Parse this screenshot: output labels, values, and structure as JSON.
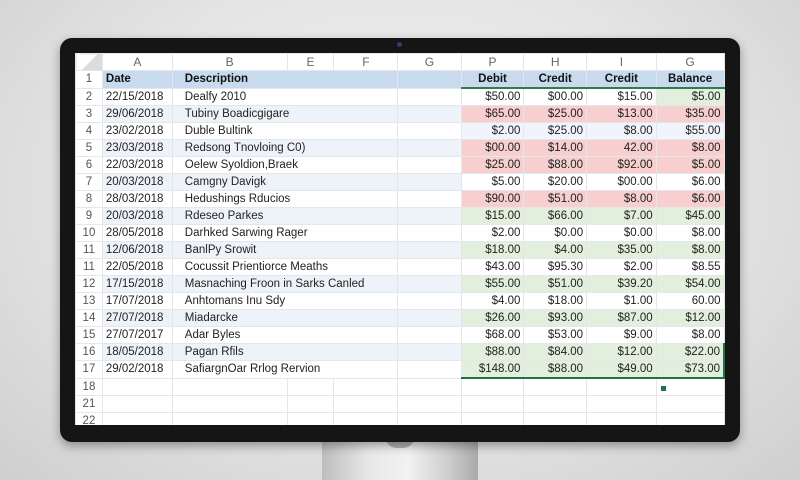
{
  "spreadsheet": {
    "column_headers": [
      "A",
      "B",
      "E",
      "F",
      "G",
      "P",
      "H",
      "I",
      "G"
    ],
    "header_row": {
      "row_number": "1",
      "date": "Date",
      "description": "Description",
      "debit": "Debit",
      "credit1": "Credit",
      "credit2": "Credit",
      "balance": "Balance"
    },
    "rows": [
      {
        "row_number": "2",
        "date": "22/15/2018",
        "description": "Dealfy 2010",
        "debit": "$50.00",
        "credit1": "$00.00",
        "credit2": "$15.00",
        "balance": "$5.00"
      },
      {
        "row_number": "3",
        "date": "29/06/2018",
        "description": "Tubiny Boadicgigare",
        "debit": "$65.00",
        "credit1": "$25.00",
        "credit2": "$13.00",
        "balance": "$35.00"
      },
      {
        "row_number": "4",
        "date": "23/02/2018",
        "description": "Duble Bultink",
        "debit": "$2.00",
        "credit1": "$25.00",
        "credit2": "$8.00",
        "balance": "$55.00"
      },
      {
        "row_number": "5",
        "date": "23/03/2018",
        "description": "Redsong Tnovloing C0)",
        "debit": "$00.00",
        "credit1": "$14.00",
        "credit2": "42.00",
        "balance": "$8.00"
      },
      {
        "row_number": "6",
        "date": "22/03/2018",
        "description": "Oelew Syoldion,Braek",
        "debit": "$25.00",
        "credit1": "$88.00",
        "credit2": "$92.00",
        "balance": "$5.00"
      },
      {
        "row_number": "7",
        "date": "20/03/2018",
        "description": "Camgny Davigk",
        "debit": "$5.00",
        "credit1": "$20.00",
        "credit2": "$00.00",
        "balance": "$6.00"
      },
      {
        "row_number": "8",
        "date": "28/03/2018",
        "description": "Hedushings Rducios",
        "debit": "$90.00",
        "credit1": "$51.00",
        "credit2": "$8.00",
        "balance": "$6.00"
      },
      {
        "row_number": "9",
        "date": "20/03/2018",
        "description": "Rdeseo Parkes",
        "debit": "$15.00",
        "credit1": "$66.00",
        "credit2": "$7.00",
        "balance": "$45.00"
      },
      {
        "row_number": "10",
        "date": "28/05/2018",
        "description": "Darhked Sarwing Rager",
        "debit": "$2.00",
        "credit1": "$0.00",
        "credit2": "$0.00",
        "balance": "$8.00"
      },
      {
        "row_number": "11",
        "date": "12/06/2018",
        "description": "BanlPy Srowit",
        "debit": "$18.00",
        "credit1": "$4.00",
        "credit2": "$35.00",
        "balance": "$8.00"
      },
      {
        "row_number": "11",
        "date": "22/05/2018",
        "description": "Cocussit Prientiorce Meaths",
        "debit": "$43.00",
        "credit1": "$95.30",
        "credit2": "$2.00",
        "balance": "$8.55"
      },
      {
        "row_number": "12",
        "date": "17/15/2018",
        "description": "Masnaching Froon in Sarks Canled",
        "debit": "$55.00",
        "credit1": "$51.00",
        "credit2": "$39.20",
        "balance": "$54.00"
      },
      {
        "row_number": "13",
        "date": "17/07/2018",
        "description": "Anhtomans Inu Sdy",
        "debit": "$4.00",
        "credit1": "$18.00",
        "credit2": "$1.00",
        "balance": "60.00"
      },
      {
        "row_number": "14",
        "date": "27/07/2018",
        "description": "Miadarcke",
        "debit": "$26.00",
        "credit1": "$93.00",
        "credit2": "$87.00",
        "balance": "$12.00"
      },
      {
        "row_number": "15",
        "date": "27/07/2017",
        "description": "Adar Byles",
        "debit": "$68.00",
        "credit1": "$53.00",
        "credit2": "$9.00",
        "balance": "$8.00"
      },
      {
        "row_number": "16",
        "date": "18/05/2018",
        "description": "Pagan Rfils",
        "debit": "$88.00",
        "credit1": "$84.00",
        "credit2": "$12.00",
        "balance": "$22.00"
      },
      {
        "row_number": "17",
        "date": "29/02/2018",
        "description": "SafiargnOar Rrlog Rervion",
        "debit": "$148.00",
        "credit1": "$88.00",
        "credit2": "$49.00",
        "balance": "$73.00"
      }
    ],
    "empty_rows": [
      "18",
      "21",
      "22"
    ],
    "colors": {
      "header_fill": "#c7daee",
      "negative_fill": "#f7cfcf",
      "positive_fill": "#e2efdc",
      "selection_border": "#217346"
    }
  }
}
